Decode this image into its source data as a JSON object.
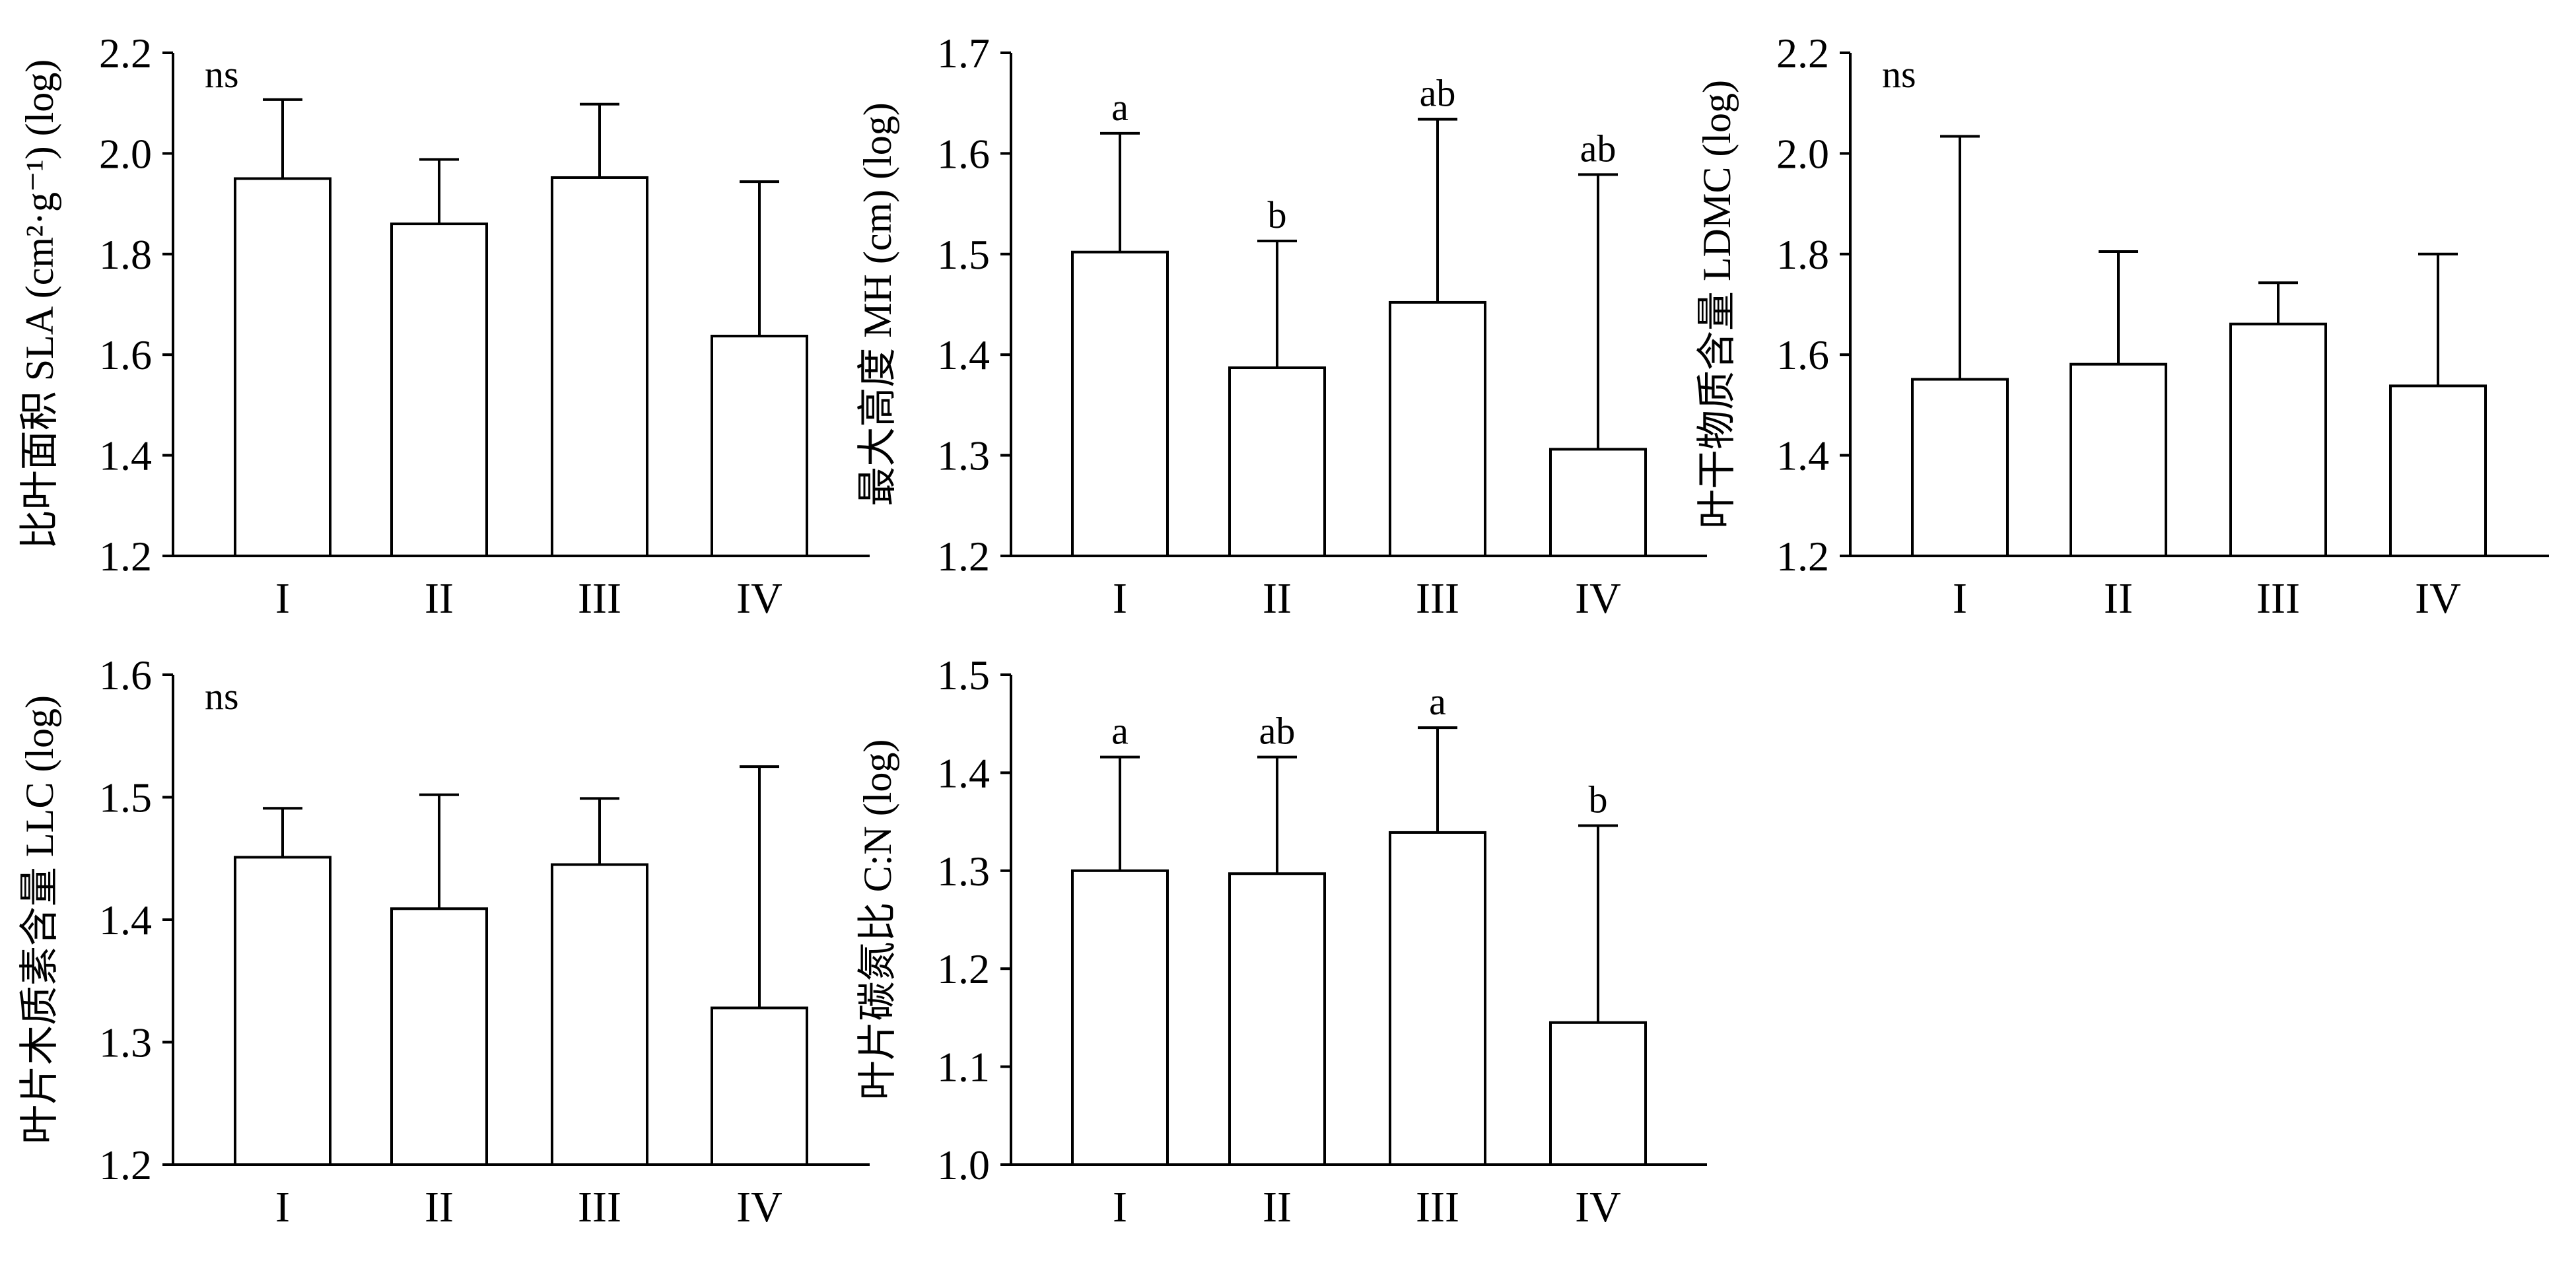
{
  "figure": {
    "background": "#ffffff",
    "stroke_color": "#000000",
    "bar_fill": "#ffffff"
  },
  "chart_data": [
    {
      "type": "bar",
      "ylabel": "比叶面积 SLA (cm²·g⁻¹) (log)",
      "categories": [
        "I",
        "II",
        "III",
        "IV"
      ],
      "values": [
        1.95,
        1.86,
        1.952,
        1.637
      ],
      "error_upper": [
        0.157,
        0.128,
        0.146,
        0.307
      ],
      "significance": [
        "",
        "",
        "",
        ""
      ],
      "annotation": "ns",
      "ylim": [
        1.2,
        2.2
      ],
      "yticks": [
        "1.2",
        "1.4",
        "1.6",
        "1.8",
        "2.0",
        "2.2"
      ],
      "grid": false
    },
    {
      "type": "bar",
      "ylabel": "最大高度 MH (cm) (log)",
      "categories": [
        "I",
        "II",
        "III",
        "IV"
      ],
      "values": [
        1.502,
        1.387,
        1.452,
        1.306
      ],
      "error_upper": [
        0.118,
        0.126,
        0.182,
        0.273
      ],
      "significance": [
        "a",
        "b",
        "ab",
        "ab"
      ],
      "annotation": "",
      "ylim": [
        1.2,
        1.7
      ],
      "yticks": [
        "1.2",
        "1.3",
        "1.4",
        "1.5",
        "1.6",
        "1.7"
      ],
      "grid": false
    },
    {
      "type": "bar",
      "ylabel": "叶干物质含量 LDMC (log)",
      "categories": [
        "I",
        "II",
        "III",
        "IV"
      ],
      "values": [
        1.551,
        1.581,
        1.661,
        1.538
      ],
      "error_upper": [
        0.483,
        0.224,
        0.082,
        0.262
      ],
      "significance": [
        "",
        "",
        "",
        ""
      ],
      "annotation": "ns",
      "ylim": [
        1.2,
        2.2
      ],
      "yticks": [
        "1.2",
        "1.4",
        "1.6",
        "1.8",
        "2.0",
        "2.2"
      ],
      "grid": false
    },
    {
      "type": "bar",
      "ylabel": "叶片木质素含量 LLC (log)",
      "categories": [
        "I",
        "II",
        "III",
        "IV"
      ],
      "values": [
        1.451,
        1.409,
        1.445,
        1.328
      ],
      "error_upper": [
        0.04,
        0.093,
        0.054,
        0.197
      ],
      "significance": [
        "",
        "",
        "",
        ""
      ],
      "annotation": "ns",
      "ylim": [
        1.2,
        1.6
      ],
      "yticks": [
        "1.2",
        "1.3",
        "1.4",
        "1.5",
        "1.6"
      ],
      "grid": false
    },
    {
      "type": "bar",
      "ylabel": "叶片碳氮比 C:N (log)",
      "categories": [
        "I",
        "II",
        "III",
        "IV"
      ],
      "values": [
        1.3,
        1.297,
        1.339,
        1.145
      ],
      "error_upper": [
        0.116,
        0.119,
        0.107,
        0.201
      ],
      "significance": [
        "a",
        "ab",
        "a",
        "b"
      ],
      "annotation": "",
      "ylim": [
        1.0,
        1.5
      ],
      "yticks": [
        "1.0",
        "1.1",
        "1.2",
        "1.3",
        "1.4",
        "1.5"
      ],
      "grid": false
    }
  ]
}
